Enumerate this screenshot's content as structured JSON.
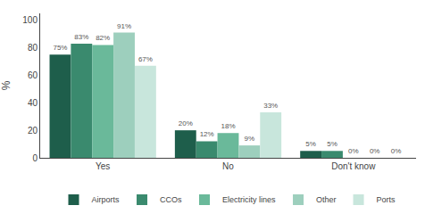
{
  "chart_data": {
    "type": "bar",
    "categories": [
      "Yes",
      "No",
      "Don't know"
    ],
    "series": [
      {
        "name": "Airports",
        "color": "#1e5e4b",
        "values": [
          75,
          20,
          5
        ],
        "value_labels": [
          "75%",
          "20%",
          "5%"
        ]
      },
      {
        "name": "CCOs",
        "color": "#3a8a6e",
        "values": [
          83,
          12,
          5
        ],
        "value_labels": [
          "83%",
          "12%",
          "5%"
        ]
      },
      {
        "name": "Electricity lines",
        "color": "#6ab99a",
        "values": [
          82,
          18,
          0
        ],
        "value_labels": [
          "82%",
          "18%",
          "0%"
        ]
      },
      {
        "name": "Other",
        "color": "#9dcfbd",
        "values": [
          91,
          9,
          0
        ],
        "value_labels": [
          "91%",
          "9%",
          "0%"
        ]
      },
      {
        "name": "Ports",
        "color": "#c8e6dc",
        "values": [
          67,
          33,
          0
        ],
        "value_labels": [
          "67%",
          "33%",
          "0%"
        ]
      }
    ],
    "ylabel": "%",
    "ylim": [
      0,
      105
    ],
    "yticks": [
      0,
      20,
      40,
      60,
      80,
      100
    ],
    "grid": false,
    "legend": "bottom",
    "data_labels": true
  }
}
